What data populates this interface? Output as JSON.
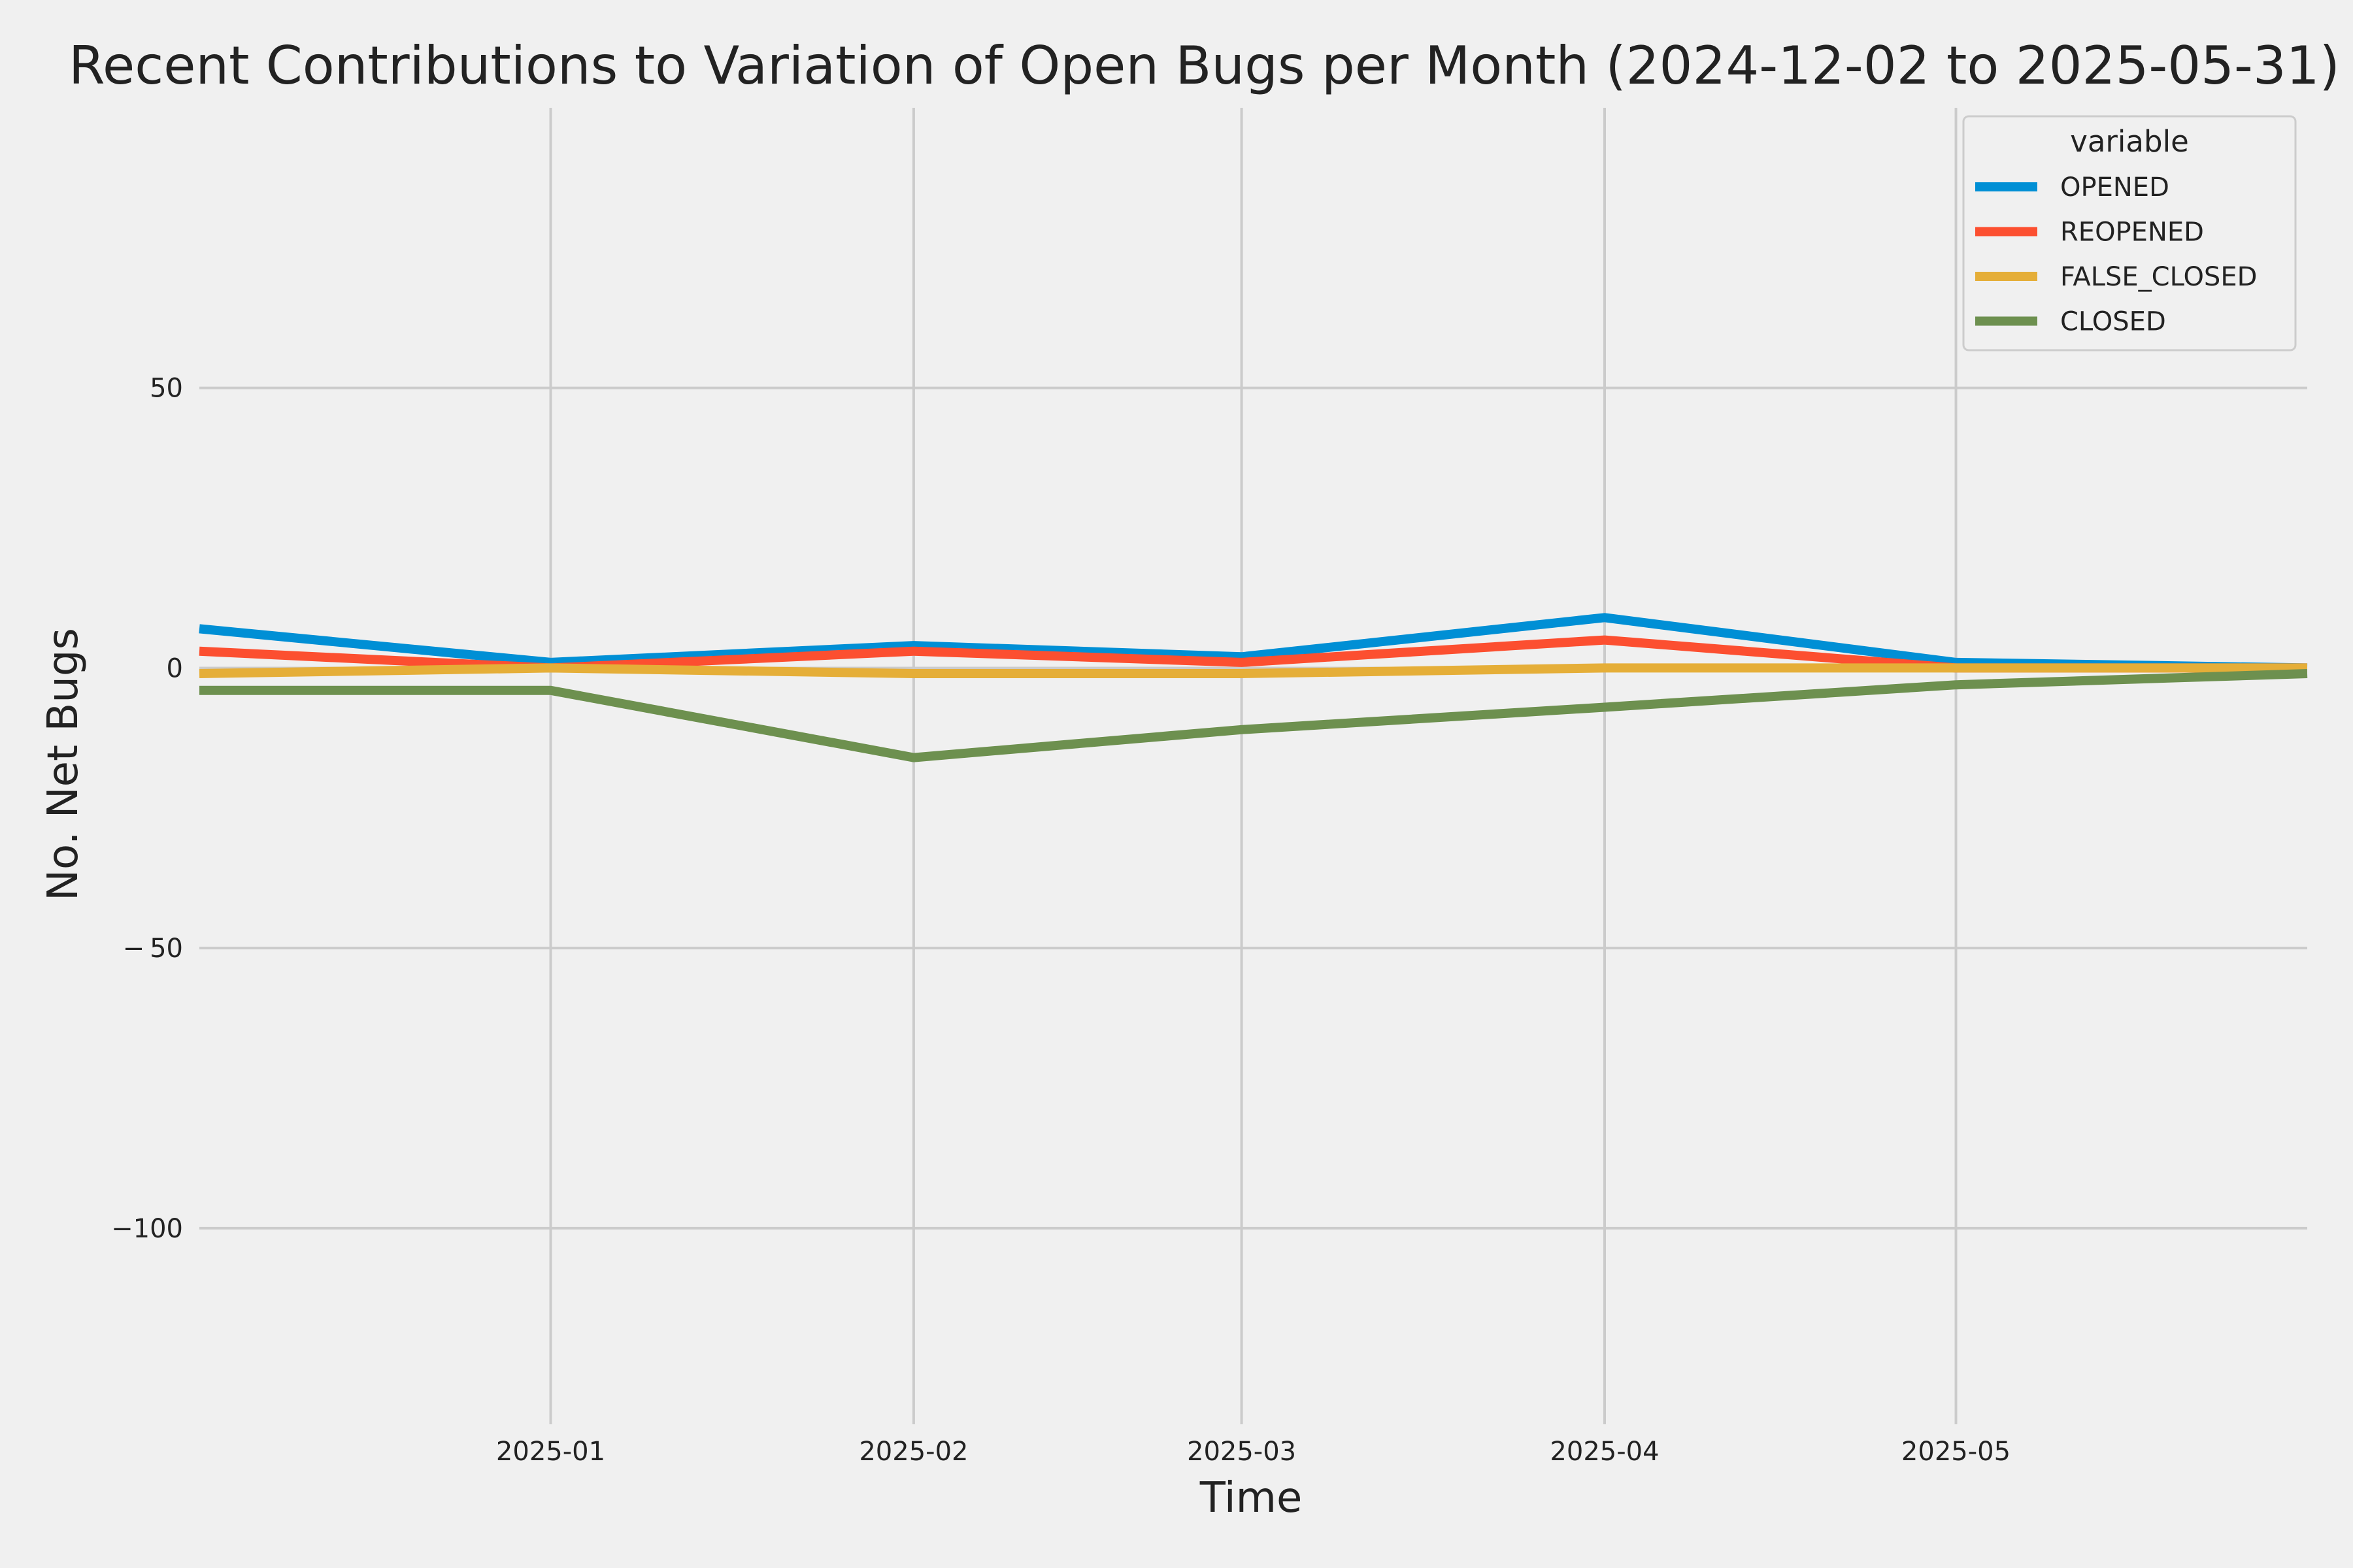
{
  "chart_data": {
    "type": "line",
    "title": "Recent Contributions to Variation of Open Bugs per Month (2024-12-02 to 2025-05-31)",
    "xlabel": "Time",
    "ylabel": "No. Net Bugs",
    "x": [
      "2024-12-02",
      "2025-01-01",
      "2025-02-01",
      "2025-03-01",
      "2025-04-01",
      "2025-05-01",
      "2025-05-31"
    ],
    "x_ticks": [
      "2025-01",
      "2025-02",
      "2025-03",
      "2025-04",
      "2025-05"
    ],
    "x_tick_dates": [
      "2025-01-01",
      "2025-02-01",
      "2025-03-01",
      "2025-04-01",
      "2025-05-01"
    ],
    "y_ticks": [
      50,
      0,
      -50,
      -100
    ],
    "y_tick_labels": [
      "50",
      "0",
      "− 50",
      "−100"
    ],
    "xlim": [
      "2024-12-02",
      "2025-05-31"
    ],
    "ylim": [
      -135,
      100
    ],
    "grid": true,
    "legend": {
      "title": "variable",
      "placement": "top-right"
    },
    "series": [
      {
        "name": "OPENED",
        "color": "#008fd5",
        "values": [
          7,
          1,
          4,
          2,
          9,
          1,
          0
        ]
      },
      {
        "name": "REOPENED",
        "color": "#fc4f30",
        "values": [
          3,
          0,
          3,
          1,
          5,
          0,
          0
        ]
      },
      {
        "name": "FALSE_CLOSED",
        "color": "#e5ae38",
        "values": [
          -1,
          0,
          -1,
          -1,
          0,
          0,
          0
        ]
      },
      {
        "name": "CLOSED",
        "color": "#6d904f",
        "values": [
          -4,
          -4,
          -16,
          -11,
          -7,
          -3,
          -1
        ]
      }
    ]
  }
}
